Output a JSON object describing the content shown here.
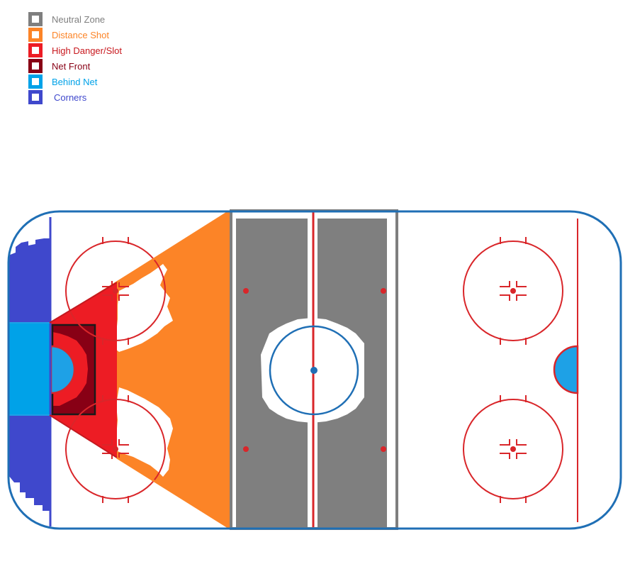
{
  "legend": {
    "items": [
      {
        "key": "neutral",
        "label": "Neutral Zone",
        "color": "#7f7f7f"
      },
      {
        "key": "distance",
        "label": "Distance Shot",
        "color": "#fc8427"
      },
      {
        "key": "danger",
        "label": "High Danger/Slot",
        "color": "#ed1c24"
      },
      {
        "key": "netfront",
        "label": "Net Front",
        "color": "#880015"
      },
      {
        "key": "behind",
        "label": "Behind Net",
        "color": "#00a2e8"
      },
      {
        "key": "corners",
        "label": "Corners",
        "color": "#3f48cc"
      }
    ]
  },
  "rink": {
    "board_color": "#1f6fb5",
    "line_red": "#d9262a",
    "line_blue": "#3f48cc",
    "crease_color": "#1ea1e6"
  }
}
